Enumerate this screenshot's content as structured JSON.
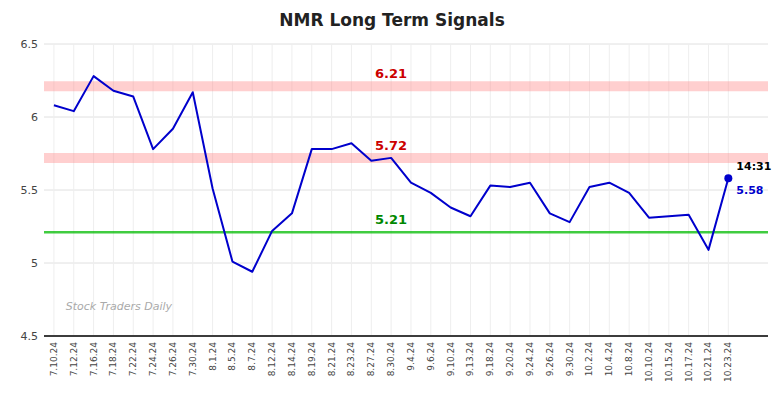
{
  "chart_data": {
    "type": "line",
    "title": "NMR Long Term Signals",
    "categories": [
      "7.10.24",
      "7.12.24",
      "7.16.24",
      "7.18.24",
      "7.22.24",
      "7.24.24",
      "7.26.24",
      "7.30.24",
      "8.1.24",
      "8.5.24",
      "8.7.24",
      "8.12.24",
      "8.14.24",
      "8.19.24",
      "8.21.24",
      "8.23.24",
      "8.27.24",
      "8.30.24",
      "9.4.24",
      "9.6.24",
      "9.10.24",
      "9.13.24",
      "9.18.24",
      "9.20.24",
      "9.24.24",
      "9.26.24",
      "9.30.24",
      "10.2.24",
      "10.4.24",
      "10.8.24",
      "10.10.24",
      "10.15.24",
      "10.17.24",
      "10.21.24",
      "10.23.24"
    ],
    "values": [
      6.08,
      6.04,
      6.28,
      6.18,
      6.14,
      5.78,
      5.92,
      6.17,
      5.51,
      5.01,
      4.94,
      5.22,
      5.34,
      5.78,
      5.78,
      5.82,
      5.7,
      5.72,
      5.55,
      5.48,
      5.38,
      5.32,
      5.53,
      5.52,
      5.55,
      5.34,
      5.28,
      5.52,
      5.55,
      5.48,
      5.31,
      5.32,
      5.33,
      5.09,
      5.58
    ],
    "color": "#0000cc",
    "ylim": [
      4.5,
      6.5
    ],
    "yticks": [
      4.5,
      5.0,
      5.5,
      6.0,
      6.5
    ],
    "grid": true,
    "hlines": [
      {
        "value": 6.21,
        "label": "6.21",
        "color": "#ff8888",
        "label_color": "#cc0000",
        "line_style": "band"
      },
      {
        "value": 5.72,
        "label": "5.72",
        "color": "#ff8888",
        "label_color": "#cc0000",
        "line_style": "band"
      },
      {
        "value": 5.21,
        "label": "5.21",
        "color": "#00bb00",
        "label_color": "#008800",
        "line_style": "solid"
      }
    ],
    "last_point": {
      "time": "14:31",
      "value": 5.58,
      "color": "#0000cc"
    },
    "watermark": "Stock Traders Daily"
  }
}
